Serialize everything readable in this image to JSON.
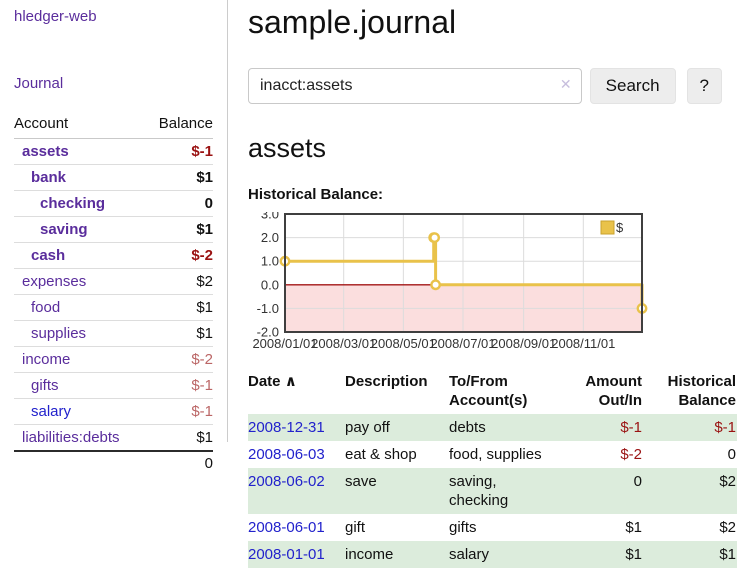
{
  "colors": {
    "link_purple": "#5a2d9c",
    "link_blue": "#2222cc",
    "negative_strong": "#9a1212",
    "negative_soft": "#bb6666",
    "row_stripe_green": "#dcecdc"
  },
  "sidebar": {
    "brand": "hledger-web",
    "nav_journal": "Journal",
    "accounts_table": {
      "headers": {
        "account": "Account",
        "balance": "Balance"
      },
      "rows": [
        {
          "name": "assets",
          "balance": "$-1",
          "indent": 0,
          "bold": true,
          "balance_style": "neg"
        },
        {
          "name": "bank",
          "balance": "$1",
          "indent": 1,
          "bold": true,
          "balance_style": ""
        },
        {
          "name": "checking",
          "balance": "0",
          "indent": 2,
          "bold": true,
          "balance_style": ""
        },
        {
          "name": "saving",
          "balance": "$1",
          "indent": 2,
          "bold": true,
          "balance_style": ""
        },
        {
          "name": "cash",
          "balance": "$-2",
          "indent": 1,
          "bold": true,
          "balance_style": "neg"
        },
        {
          "name": "expenses",
          "balance": "$2",
          "indent": 0,
          "bold": false,
          "balance_style": ""
        },
        {
          "name": "food",
          "balance": "$1",
          "indent": 1,
          "bold": false,
          "balance_style": ""
        },
        {
          "name": "supplies",
          "balance": "$1",
          "indent": 1,
          "bold": false,
          "balance_style": ""
        },
        {
          "name": "income",
          "balance": "$-2",
          "indent": 0,
          "bold": false,
          "balance_style": "softneg"
        },
        {
          "name": "gifts",
          "balance": "$-1",
          "indent": 1,
          "bold": false,
          "balance_style": "softneg"
        },
        {
          "name": "salary",
          "balance": "$-1",
          "indent": 1,
          "bold": false,
          "balance_style": "softneg",
          "name_style": "alt"
        },
        {
          "name": "liabilities:debts",
          "balance": "$1",
          "indent": 0,
          "bold": false,
          "balance_style": ""
        }
      ],
      "total": "0"
    }
  },
  "header": {
    "title": "sample.journal"
  },
  "search": {
    "value": "inacct:assets",
    "clear_icon": "✕",
    "button_label": "Search",
    "help_label": "?"
  },
  "account_page": {
    "heading": "assets",
    "chart_title": "Historical Balance:"
  },
  "chart_data": {
    "type": "line",
    "step": true,
    "title": "Historical Balance:",
    "series": [
      {
        "name": "$",
        "x": [
          "2008-01-01",
          "2008-06-01",
          "2008-06-02",
          "2008-06-03",
          "2008-12-31"
        ],
        "y": [
          1,
          2,
          2,
          0,
          -1
        ]
      }
    ],
    "xlim": [
      "2008-01-01",
      "2008-12-31"
    ],
    "ylim": [
      -2,
      3
    ],
    "y_ticks": [
      {
        "value": 3,
        "label": "3.0"
      },
      {
        "value": 2,
        "label": "2.0"
      },
      {
        "value": 1,
        "label": "1.0"
      },
      {
        "value": 0,
        "label": "0.0"
      },
      {
        "value": -1,
        "label": "-1.0"
      },
      {
        "value": -2,
        "label": "-2.0"
      }
    ],
    "x_ticks": [
      {
        "date": "2008-01-01",
        "label": "2008/01/01"
      },
      {
        "date": "2008-03-01",
        "label": "2008/03/01"
      },
      {
        "date": "2008-05-01",
        "label": "2008/05/01"
      },
      {
        "date": "2008-07-01",
        "label": "2008/07/01"
      },
      {
        "date": "2008-09-01",
        "label": "2008/09/01"
      },
      {
        "date": "2008-11-01",
        "label": "2008/11/01"
      }
    ],
    "legend": {
      "position": "top-right",
      "entries": [
        "$"
      ]
    },
    "grid": true,
    "colors": {
      "line": "#e9c24a",
      "marker_fill": "#ffffff",
      "negative_region": "#fbdede",
      "zero_line": "#a31515",
      "grid": "#dcdcdc",
      "border": "#3f3f3f",
      "legend_swatch": "#e9c24a",
      "legend_swatch_border": "#c9a22e"
    }
  },
  "register_table": {
    "headers": {
      "date": "Date",
      "sort_icon": "∧",
      "description": "Description",
      "accounts": "To/From Account(s)",
      "amount": "Amount Out/In",
      "balance": "Historical Balance"
    },
    "rows": [
      {
        "date": "2008-12-31",
        "description": "pay off",
        "accounts": "debts",
        "amount": "$-1",
        "balance": "$-1",
        "amount_neg": true,
        "balance_neg": true
      },
      {
        "date": "2008-06-03",
        "description": "eat & shop",
        "accounts": "food, supplies",
        "amount": "$-2",
        "balance": "0",
        "amount_neg": true,
        "balance_neg": false
      },
      {
        "date": "2008-06-02",
        "description": "save",
        "accounts": "saving, checking",
        "amount": "0",
        "balance": "$2",
        "amount_neg": false,
        "balance_neg": false
      },
      {
        "date": "2008-06-01",
        "description": "gift",
        "accounts": "gifts",
        "amount": "$1",
        "balance": "$2",
        "amount_neg": false,
        "balance_neg": false
      },
      {
        "date": "2008-01-01",
        "description": "income",
        "accounts": "salary",
        "amount": "$1",
        "balance": "$1",
        "amount_neg": false,
        "balance_neg": false
      }
    ]
  }
}
